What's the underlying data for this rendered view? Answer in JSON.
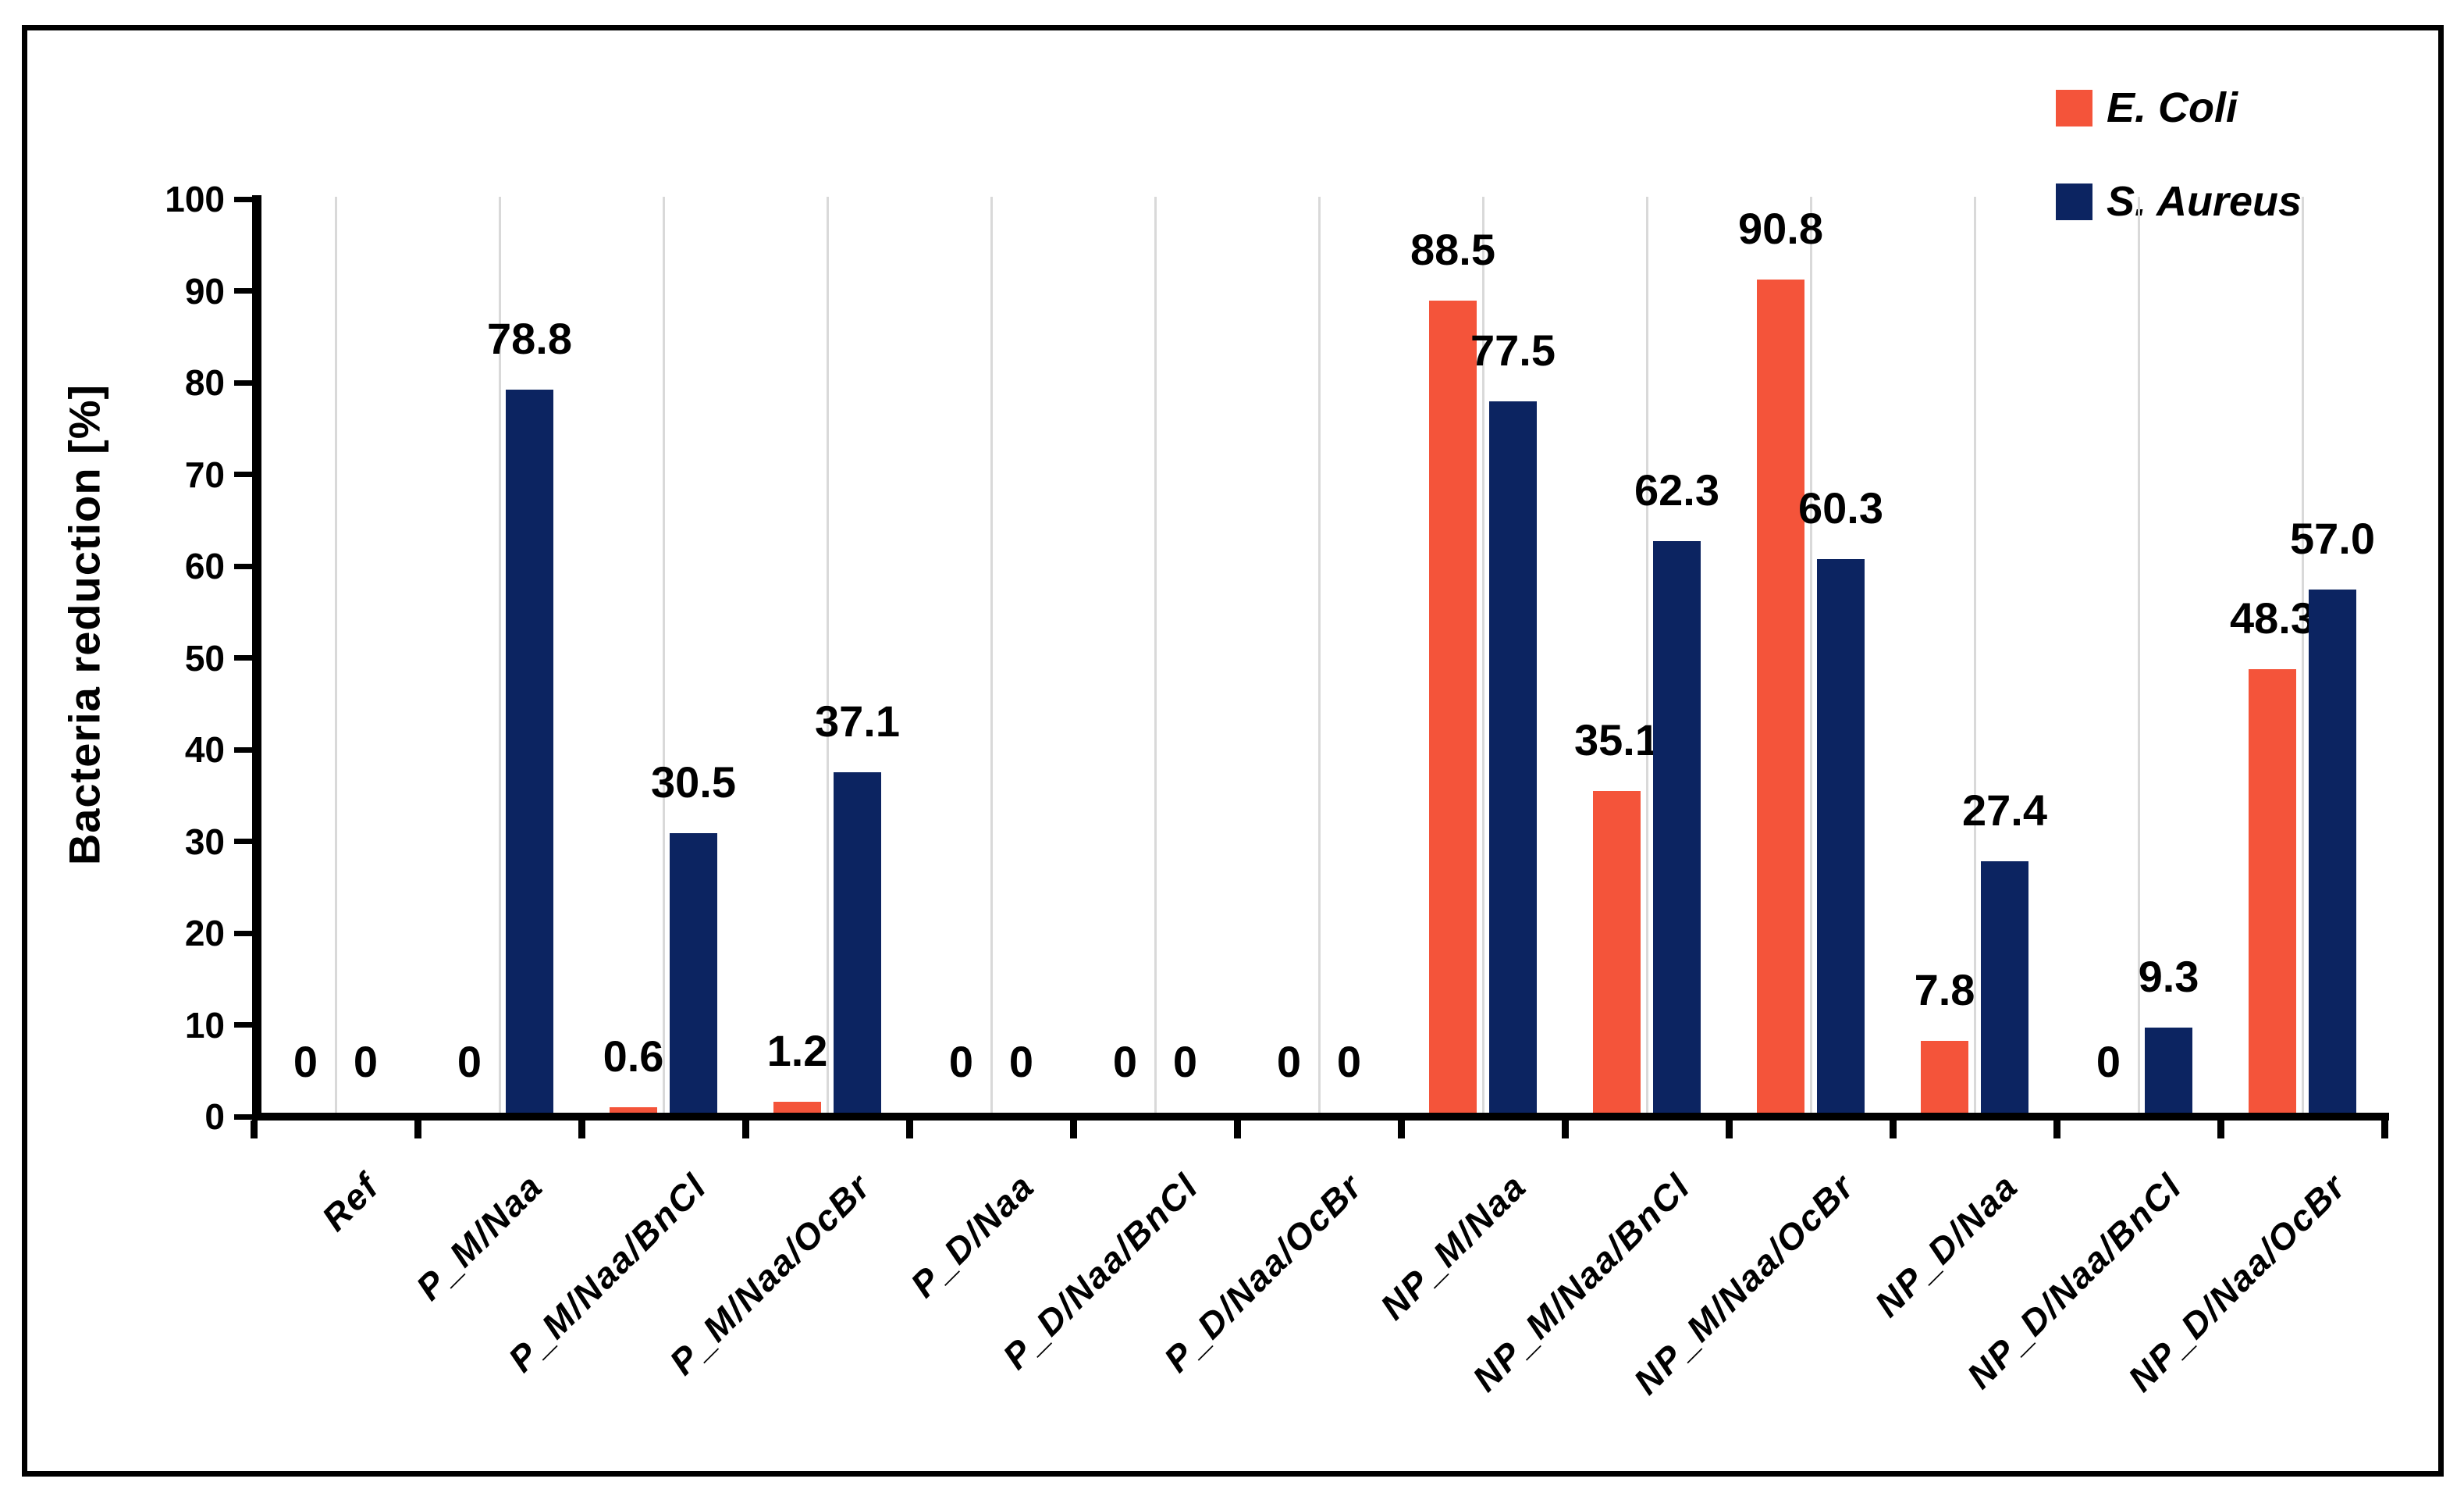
{
  "figure": {
    "background": "#ffffff",
    "border_color": "#000000"
  },
  "chart_data": {
    "type": "bar",
    "title": "",
    "xlabel": "",
    "ylabel": "Bacteria reduction [%]",
    "ylim": [
      0,
      100
    ],
    "ytick_step": 10,
    "yticks": [
      "0",
      "10",
      "20",
      "30",
      "40",
      "50",
      "60",
      "70",
      "80",
      "90",
      "100"
    ],
    "grid": "vertical-light-gridlines-at-category-centers",
    "gridline_color": "#d9d9d9",
    "axis_color": "#000000",
    "legend_position": "top-right",
    "categories": [
      "Ref",
      "P_M/Naa",
      "P_M/Naa/BnCl",
      "P_M/Naa/OcBr",
      "P_D/Naa",
      "P_D/Naa/BnCl",
      "P_D/Naa/OcBr",
      "NP_M/Naa",
      "NP_M/Naa/BnCl",
      "NP_M/Naa/OcBr",
      "NP_D/Naa",
      "NP_D/Naa/BnCl",
      "NP_D/Naa/OcBr"
    ],
    "series": [
      {
        "name": "E. Coli",
        "color": "#f4543a",
        "values": [
          0,
          0,
          0.6,
          1.2,
          0,
          0,
          0,
          88.5,
          35.1,
          90.8,
          7.8,
          0,
          48.3
        ],
        "labels": [
          "0",
          "0",
          "0.6",
          "1.2",
          "0",
          "0",
          "0",
          "88.5",
          "35.1",
          "90.8",
          "7.8",
          "0",
          "48.3"
        ]
      },
      {
        "name": "S. Aureus",
        "color": "#0c2461",
        "values": [
          0,
          78.8,
          30.5,
          37.1,
          0,
          0,
          0,
          77.5,
          62.3,
          60.3,
          27.4,
          9.3,
          57.0
        ],
        "labels": [
          "0",
          "78.8",
          "30.5",
          "37.1",
          "0",
          "0",
          "0",
          "77.5",
          "62.3",
          "60.3",
          "27.4",
          "9.3",
          "57.0"
        ]
      }
    ]
  }
}
